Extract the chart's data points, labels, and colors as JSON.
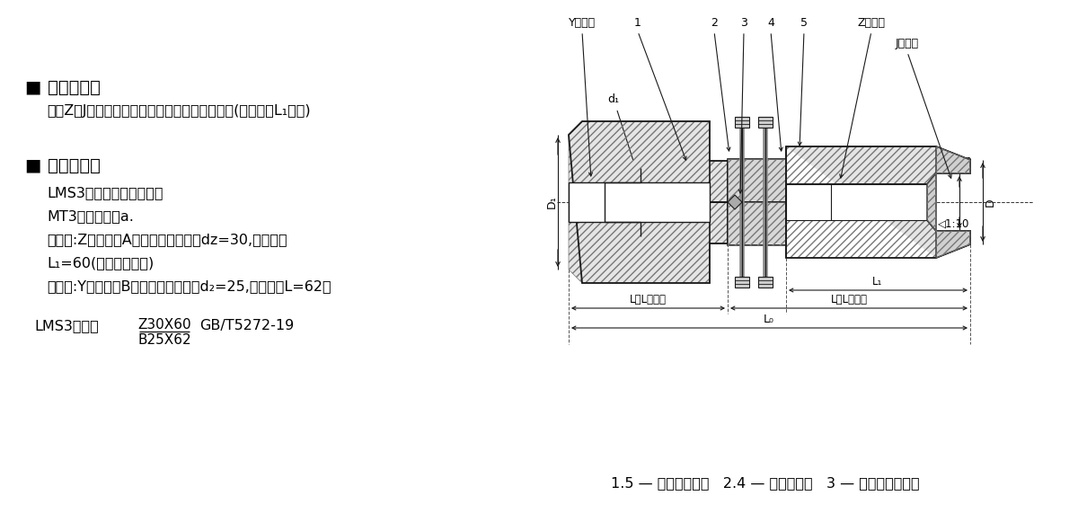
{
  "bg_color": "#ffffff",
  "text_color": "#000000",
  "left_section": {
    "mark_title": "■ 标记说明：",
    "mark_desc": "对于Z、J型带沉孔的轴孔长度是指轴孔配合长度(即左图中L₁尺寸)",
    "example_title": "■ 标记示例：",
    "example_lines": [
      "LMS3型梅花形弹性联轴器",
      "MT3弹性件硬度a.",
      "主动端:Z型轴孔，A型键槽，轴孔直径dᴢ=30,轴孔长度",
      "L₁=60(不含沉孔长度)",
      "从动端:Y型轴孔，B型键槽，轴孔直径d₂=25,轴孔长度L=62。"
    ],
    "lms_label": "LMS3联轴器",
    "frac_top": "Z30X60",
    "frac_bot": "B25X62",
    "std": "GB/T5272-19"
  },
  "right_section": {
    "caption": "1.5 — 法兰半联轴器   2.4 — 法兰联轴器   3 — 梅花型弹性元件"
  }
}
